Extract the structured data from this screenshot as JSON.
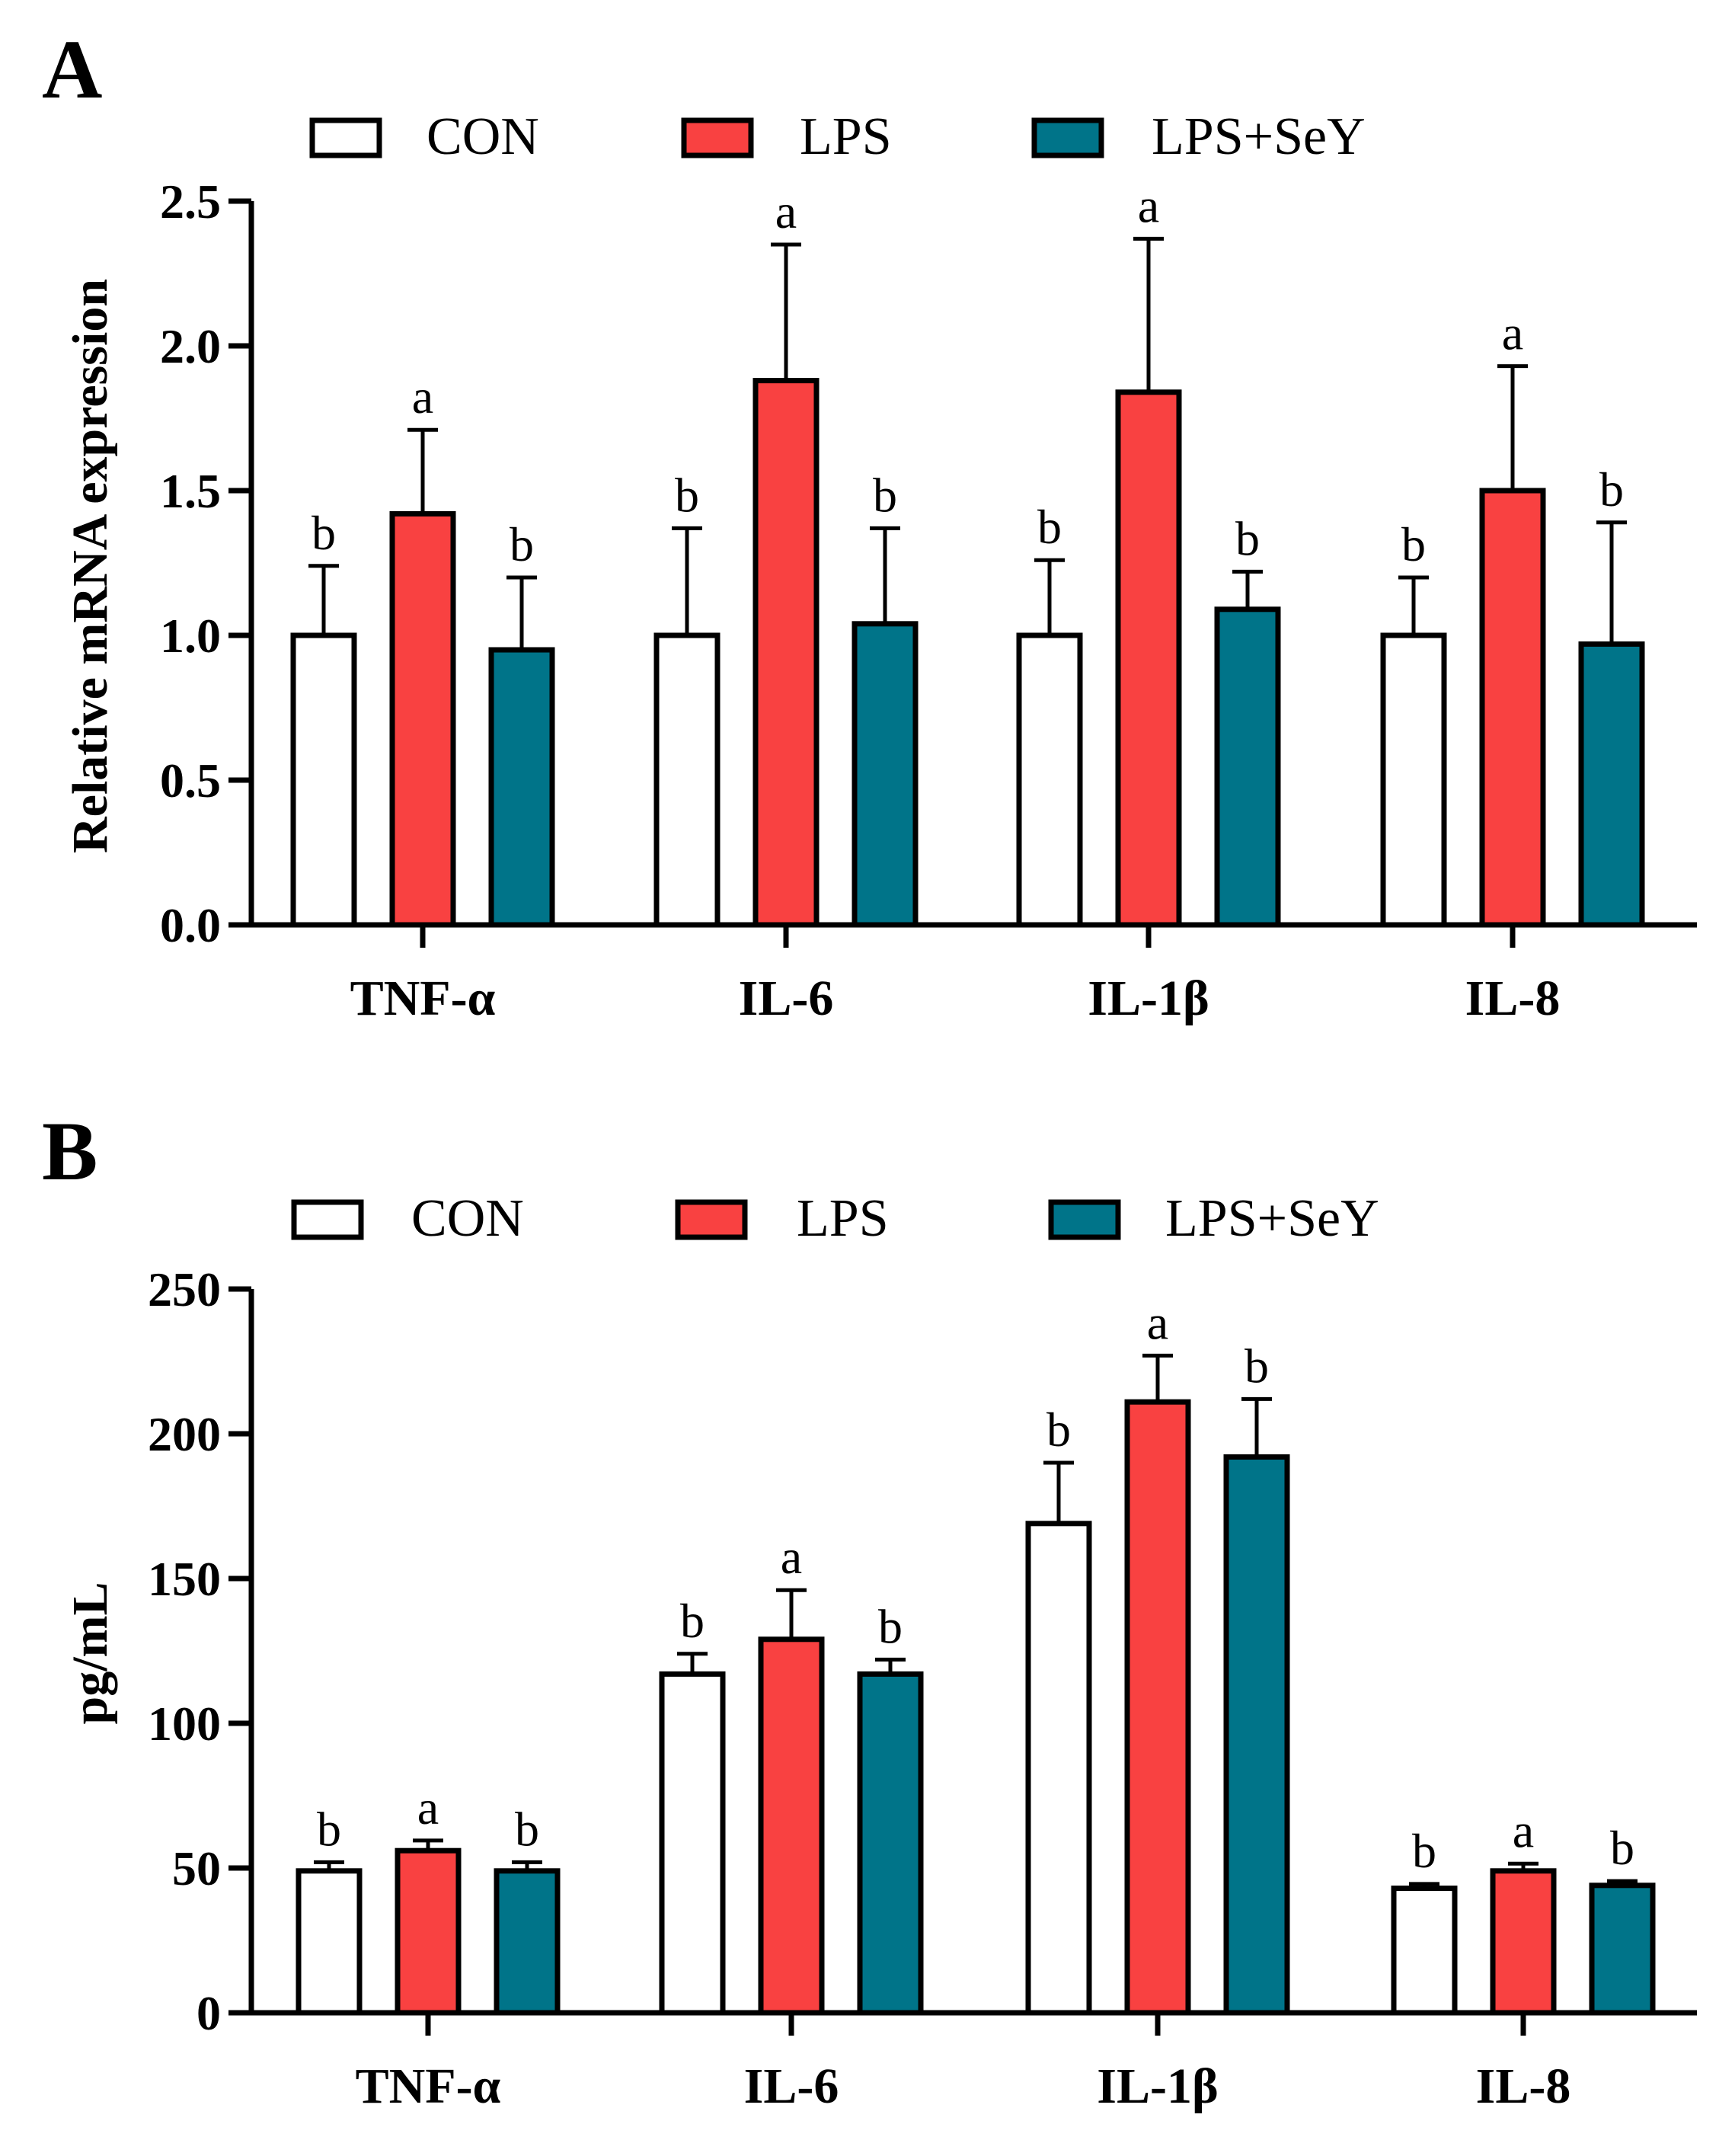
{
  "colors": {
    "CON": "#ffffff",
    "LPS": "#f94141",
    "LPS+SeY": "#007489",
    "axis": "#000000"
  },
  "chart_data": [
    {
      "panel": "A",
      "type": "bar",
      "title": "",
      "xlabel": "",
      "ylabel": "Relative mRNA expression",
      "ylim": [
        0,
        2.5
      ],
      "yticks": [
        "0.0",
        "0.5",
        "1.0",
        "1.5",
        "2.0",
        "2.5"
      ],
      "categories": [
        "TNF-α",
        "IL-6",
        "IL-1β",
        "IL-8"
      ],
      "legend": [
        "CON",
        "LPS",
        "LPS+SeY"
      ],
      "legend_position": "top",
      "series": [
        {
          "name": "CON",
          "values": [
            1.0,
            1.0,
            1.0,
            1.0
          ],
          "errors": [
            0.24,
            0.37,
            0.26,
            0.2
          ],
          "letters": [
            "b",
            "b",
            "b",
            "b"
          ]
        },
        {
          "name": "LPS",
          "values": [
            1.42,
            1.88,
            1.84,
            1.5
          ],
          "errors": [
            0.29,
            0.47,
            0.53,
            0.43
          ],
          "letters": [
            "a",
            "a",
            "a",
            "a"
          ]
        },
        {
          "name": "LPS+SeY",
          "values": [
            0.95,
            1.04,
            1.09,
            0.97
          ],
          "errors": [
            0.25,
            0.33,
            0.13,
            0.42
          ],
          "letters": [
            "b",
            "b",
            "b",
            "b"
          ]
        }
      ]
    },
    {
      "panel": "B",
      "type": "bar",
      "title": "",
      "xlabel": "",
      "ylabel": "pg/mL",
      "ylim": [
        0,
        250
      ],
      "yticks": [
        "0",
        "50",
        "100",
        "150",
        "200",
        "250"
      ],
      "categories": [
        "TNF-α",
        "IL-6",
        "IL-1β",
        "IL-8"
      ],
      "legend": [
        "CON",
        "LPS",
        "LPS+SeY"
      ],
      "legend_position": "top",
      "series": [
        {
          "name": "CON",
          "values": [
            49,
            117,
            169,
            43
          ],
          "errors": [
            3,
            7,
            21,
            1.5
          ],
          "letters": [
            "b",
            "b",
            "b",
            "b"
          ]
        },
        {
          "name": "LPS",
          "values": [
            56,
            129,
            211,
            49
          ],
          "errors": [
            3.5,
            17,
            16,
            2.5
          ],
          "letters": [
            "a",
            "a",
            "a",
            "a"
          ]
        },
        {
          "name": "LPS+SeY",
          "values": [
            49,
            117,
            192,
            44
          ],
          "errors": [
            3,
            5,
            20,
            1.5
          ],
          "letters": [
            "b",
            "b",
            "b",
            "b"
          ]
        }
      ]
    }
  ]
}
